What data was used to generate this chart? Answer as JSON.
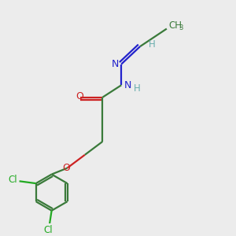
{
  "bg_color": "#ececec",
  "atom_colors": {
    "C": "#3a7a3a",
    "H": "#6aaeae",
    "N": "#2222cc",
    "O": "#cc2222",
    "Cl": "#22aa22"
  },
  "bond_color": "#3a7a3a",
  "figsize": [
    3.0,
    3.0
  ],
  "dpi": 100,
  "xlim": [
    0,
    10
  ],
  "ylim": [
    0,
    10
  ]
}
